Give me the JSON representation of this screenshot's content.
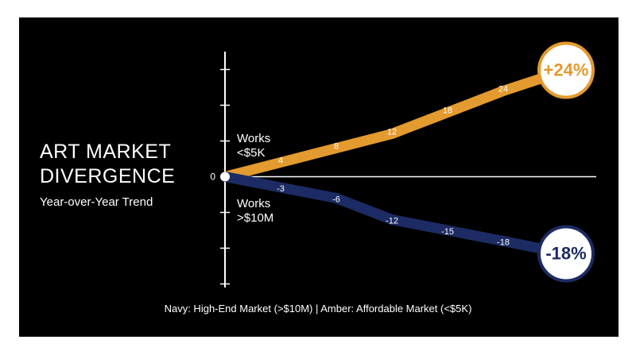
{
  "chart_data": {
    "type": "line",
    "title": "ART MARKET DIVERGENCE",
    "subtitle": "Year-over-Year Trend",
    "caption": "Navy: High-End Market (>$10M) | Amber: Affordable Market (<$5K)",
    "x": [
      0,
      1,
      2,
      3,
      4,
      5
    ],
    "xlim": [
      0,
      5
    ],
    "ylim": [
      -31,
      35
    ],
    "yticks": [
      -30,
      -20,
      -10,
      0,
      10,
      20,
      30
    ],
    "series": [
      {
        "name": "Works <$5K",
        "color": "#e39a2f",
        "values": [
          0,
          4,
          8,
          12,
          18,
          24
        ],
        "callout": "+24%"
      },
      {
        "name": "Works >$10M",
        "color": "#1c2b63",
        "values": [
          0,
          -3,
          -6,
          -12,
          -15,
          -18
        ],
        "callout": "-18%"
      }
    ]
  }
}
